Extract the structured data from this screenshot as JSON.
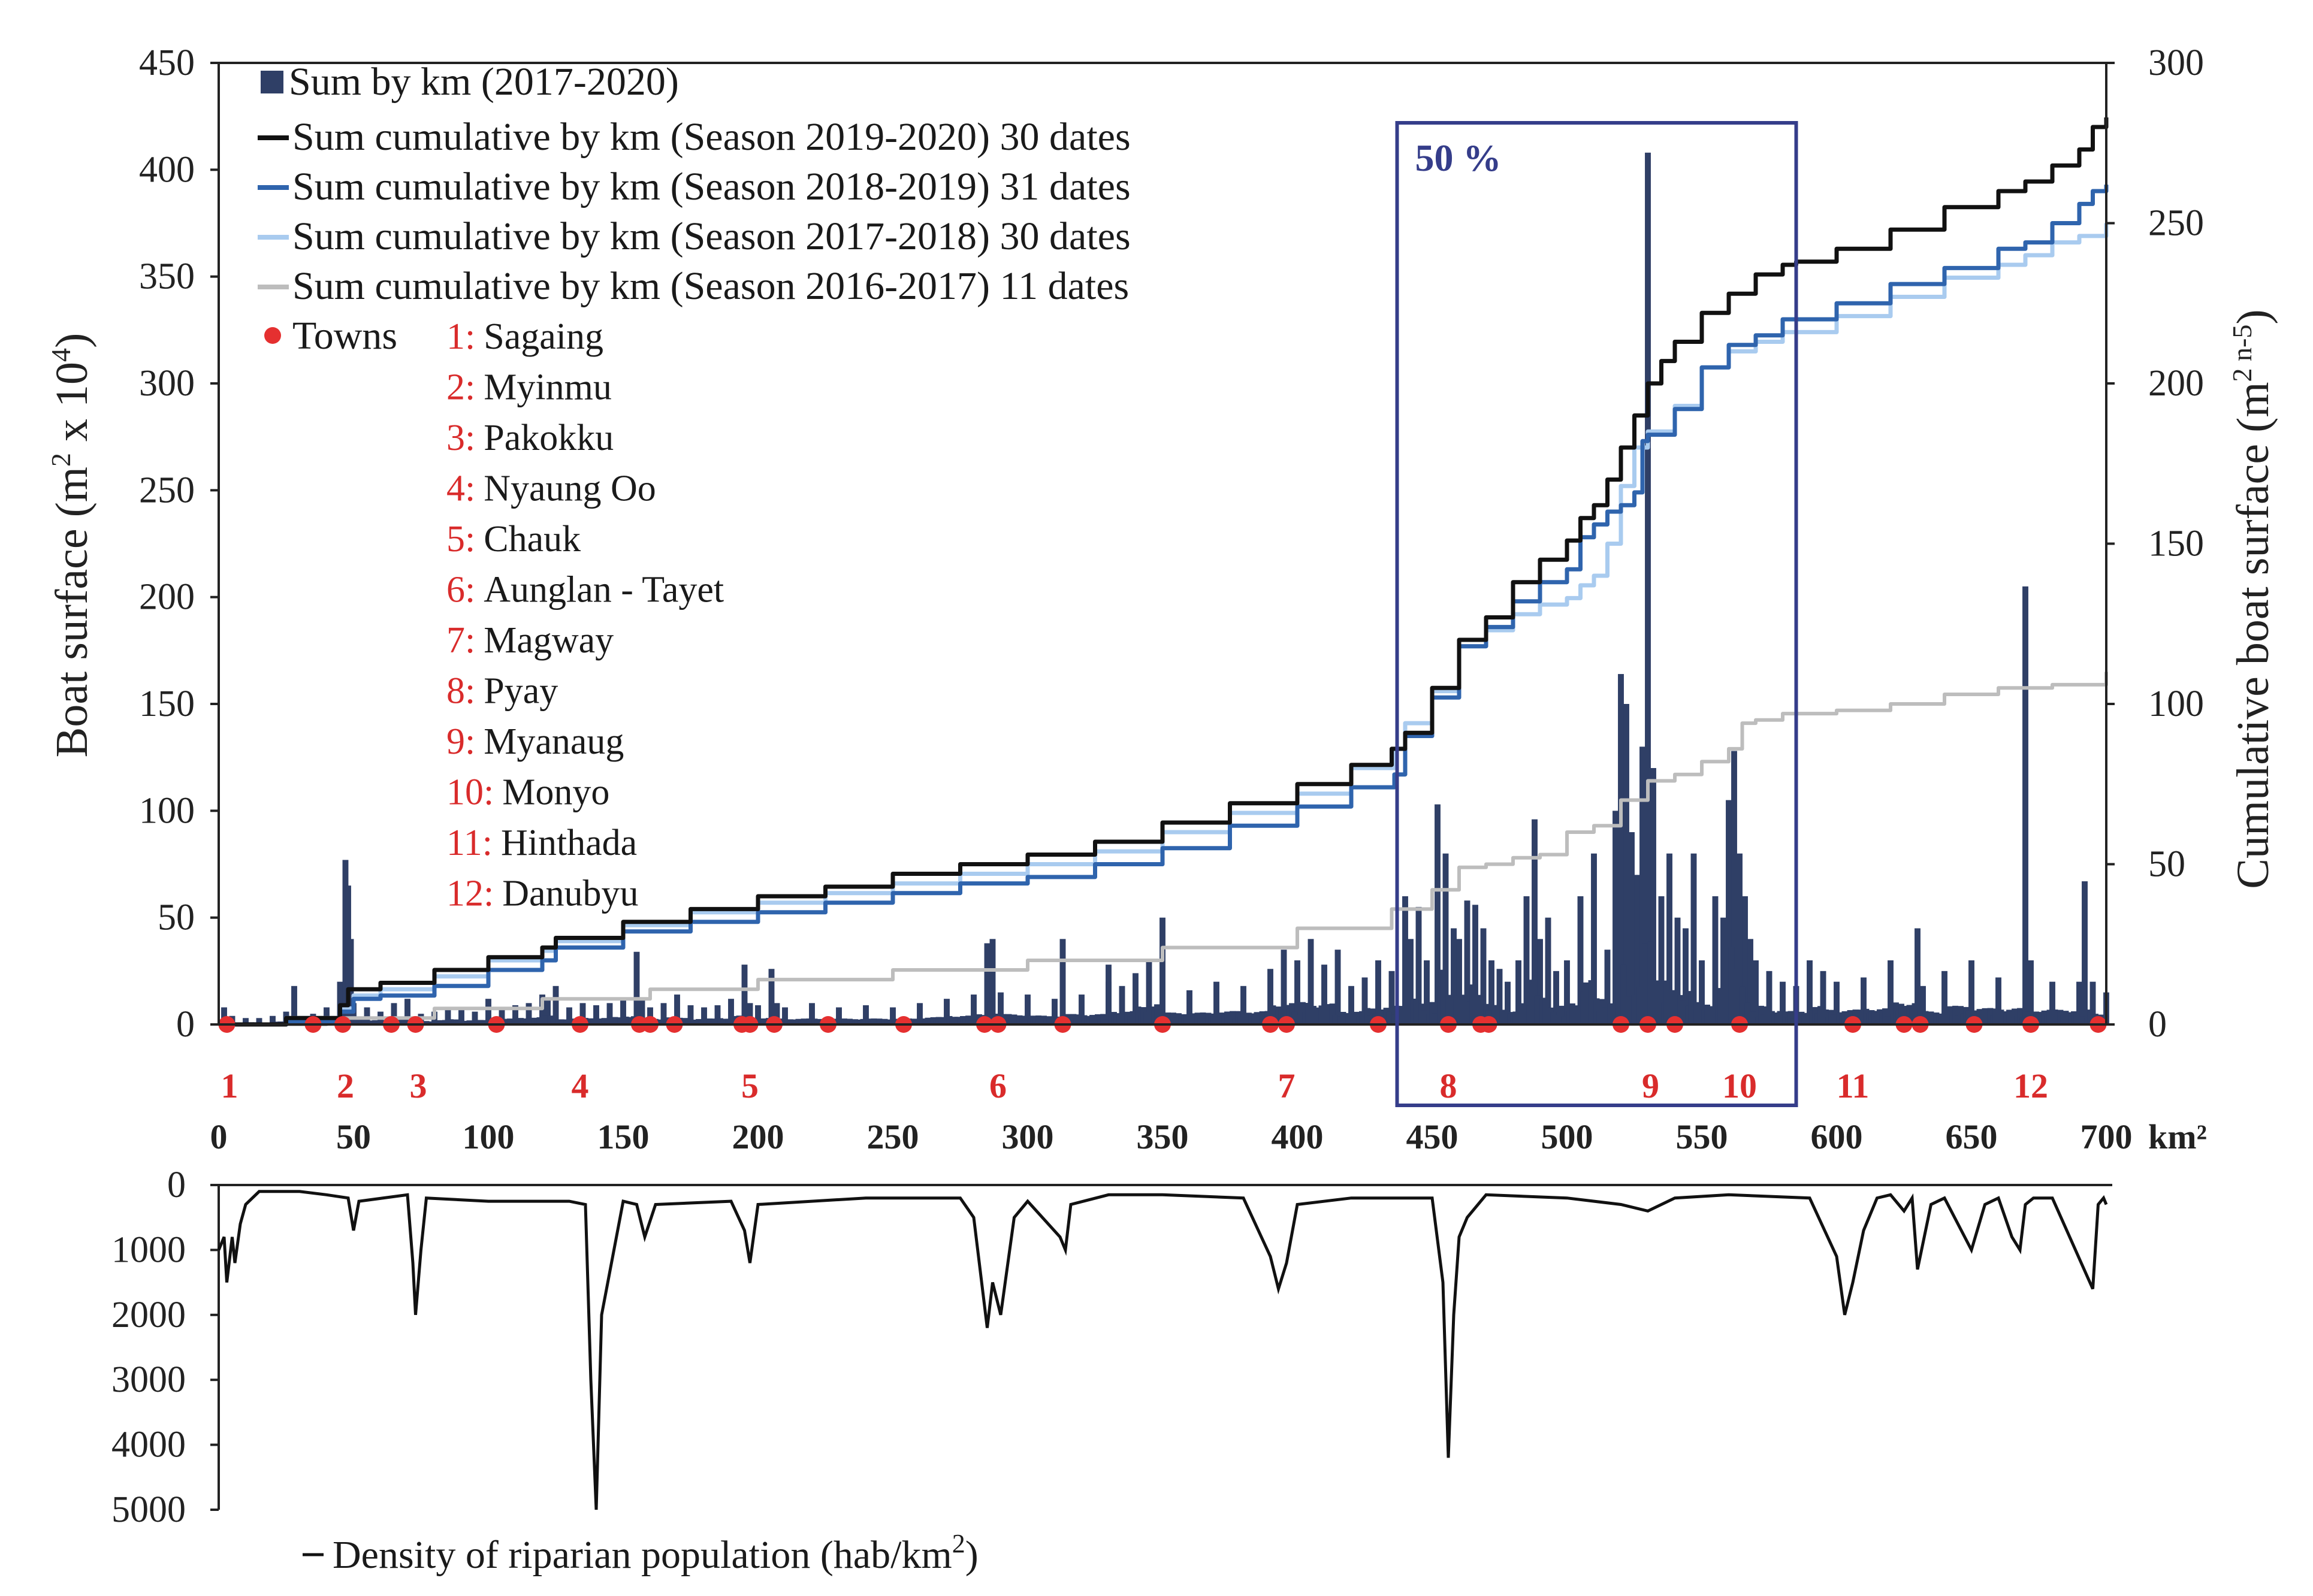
{
  "colors": {
    "bars": "#2f3f66",
    "s2019": "#111111",
    "s2018": "#2f64ad",
    "s2017": "#a9cbef",
    "s2016": "#bdbdbd",
    "towns": "#e53030",
    "highlight_box": "#353d8a",
    "density": "#111111"
  },
  "highlight": {
    "x_start": 437,
    "x_end": 585,
    "label": "50 %"
  },
  "chart_data": [
    {
      "type": "line",
      "title": "",
      "xlabel": "km²",
      "ylabel": "Boat surface (m² x 10⁴)",
      "ylabel_parts": [
        "Boat surface (m",
        "2",
        " x 10",
        "4",
        ")"
      ],
      "y2label": "Cumulative boat surface (m² n-5)",
      "y2label_parts": [
        "Cumulative boat surface (m",
        "2 n-5",
        ")"
      ],
      "xlim": [
        0,
        700
      ],
      "ylim": [
        0,
        450
      ],
      "y2lim": [
        0,
        300
      ],
      "x_ticks": [
        "0",
        "50",
        "100",
        "150",
        "200",
        "250",
        "300",
        "350",
        "400",
        "450",
        "500",
        "550",
        "600",
        "650",
        "700"
      ],
      "y_ticks": [
        "0",
        "50",
        "100",
        "150",
        "200",
        "250",
        "300",
        "350",
        "400",
        "450"
      ],
      "y2_ticks": [
        "0",
        "50",
        "100",
        "150",
        "200",
        "250",
        "300"
      ],
      "grid": false,
      "legend": "top-left",
      "bar_series": {
        "name": "Sum by km (2017-2020)",
        "x": [
          2,
          5,
          10,
          15,
          20,
          25,
          28,
          35,
          40,
          45,
          47,
          48,
          49,
          50,
          55,
          60,
          65,
          70,
          75,
          80,
          85,
          90,
          95,
          100,
          105,
          110,
          115,
          120,
          122,
          125,
          130,
          135,
          140,
          145,
          150,
          155,
          157,
          160,
          165,
          170,
          175,
          180,
          185,
          190,
          195,
          197,
          200,
          205,
          207,
          210,
          220,
          230,
          240,
          250,
          260,
          270,
          280,
          285,
          287,
          290,
          300,
          310,
          313,
          320,
          330,
          330,
          335,
          340,
          345,
          350,
          360,
          370,
          380,
          390,
          395,
          400,
          405,
          410,
          415,
          420,
          425,
          430,
          435,
          440,
          442,
          445,
          448,
          452,
          455,
          458,
          460,
          463,
          466,
          469,
          472,
          475,
          478,
          482,
          485,
          488,
          490,
          493,
          496,
          500,
          505,
          510,
          515,
          518,
          520,
          522,
          524,
          526,
          528,
          530,
          532,
          535,
          538,
          541,
          544,
          547,
          550,
          555,
          558,
          560,
          562,
          564,
          566,
          568,
          570,
          575,
          580,
          585,
          590,
          595,
          600,
          610,
          620,
          630,
          632,
          640,
          650,
          660,
          670,
          672,
          680,
          690,
          692,
          695,
          700
        ],
        "values": [
          8,
          4,
          3,
          3,
          4,
          6,
          18,
          5,
          8,
          20,
          77,
          65,
          40,
          10,
          8,
          6,
          10,
          12,
          5,
          6,
          8,
          7,
          6,
          12,
          8,
          9,
          10,
          14,
          12,
          18,
          8,
          10,
          9,
          10,
          12,
          34,
          12,
          8,
          10,
          14,
          9,
          8,
          9,
          12,
          28,
          10,
          9,
          26,
          10,
          8,
          10,
          8,
          9,
          8,
          10,
          12,
          14,
          38,
          40,
          15,
          14,
          12,
          40,
          14,
          20,
          28,
          18,
          24,
          30,
          50,
          16,
          20,
          18,
          26,
          35,
          30,
          40,
          28,
          35,
          18,
          22,
          30,
          25,
          60,
          40,
          55,
          30,
          103,
          80,
          45,
          40,
          58,
          56,
          45,
          30,
          26,
          20,
          30,
          60,
          96,
          40,
          50,
          25,
          30,
          60,
          80,
          35,
          100,
          164,
          150,
          90,
          70,
          130,
          408,
          120,
          60,
          80,
          50,
          45,
          80,
          30,
          60,
          50,
          105,
          128,
          80,
          60,
          40,
          30,
          25,
          20,
          18,
          30,
          25,
          20,
          22,
          30,
          45,
          18,
          25,
          30,
          22,
          205,
          30,
          20,
          20,
          67,
          20,
          15
        ]
      },
      "series": [
        {
          "name": "Sum cumulative by km (Season 2019-2020) 30 dates",
          "axis": "right",
          "x": [
            0,
            25,
            45,
            48,
            60,
            80,
            100,
            120,
            125,
            150,
            175,
            200,
            225,
            250,
            275,
            300,
            325,
            350,
            375,
            400,
            420,
            435,
            440,
            450,
            460,
            470,
            480,
            490,
            500,
            505,
            510,
            515,
            520,
            525,
            530,
            535,
            540,
            550,
            560,
            570,
            580,
            585,
            600,
            620,
            640,
            660,
            670,
            680,
            690,
            695,
            700
          ],
          "values": [
            0,
            2,
            6,
            11,
            13,
            17,
            21,
            24,
            27,
            32,
            36,
            40,
            43,
            47,
            50,
            53,
            57,
            63,
            69,
            75,
            81,
            86,
            91,
            105,
            120,
            127,
            138,
            145,
            151,
            158,
            162,
            170,
            180,
            190,
            200,
            207,
            213,
            222,
            228,
            234,
            237,
            238,
            242,
            248,
            255,
            260,
            263,
            268,
            273,
            280,
            283
          ]
        },
        {
          "name": "Sum cumulative by km (Season 2018-2019) 31 dates",
          "axis": "right",
          "x": [
            0,
            25,
            45,
            50,
            60,
            80,
            100,
            120,
            125,
            150,
            175,
            200,
            225,
            250,
            275,
            300,
            325,
            350,
            375,
            400,
            420,
            436,
            440,
            450,
            460,
            470,
            480,
            490,
            500,
            505,
            510,
            515,
            520,
            525,
            528,
            530,
            540,
            550,
            560,
            570,
            580,
            600,
            620,
            640,
            660,
            670,
            680,
            690,
            695,
            700
          ],
          "values": [
            0,
            1,
            4,
            8,
            9,
            12,
            17,
            20,
            24,
            29,
            32,
            35,
            38,
            41,
            44,
            46,
            50,
            55,
            62,
            68,
            74,
            78,
            90,
            102,
            118,
            124,
            132,
            138,
            142,
            152,
            156,
            160,
            162,
            166,
            182,
            184,
            192,
            205,
            212,
            215,
            220,
            225,
            231,
            236,
            242,
            244,
            250,
            256,
            260,
            262
          ]
        },
        {
          "name": "Sum cumulative by km (Season 2017-2018) 30 dates",
          "axis": "right",
          "x": [
            0,
            25,
            45,
            50,
            60,
            80,
            100,
            120,
            125,
            150,
            175,
            200,
            225,
            250,
            275,
            300,
            325,
            350,
            375,
            400,
            420,
            436,
            440,
            450,
            460,
            470,
            480,
            490,
            500,
            505,
            510,
            515,
            520,
            525,
            530,
            540,
            550,
            560,
            570,
            580,
            600,
            620,
            640,
            660,
            670,
            680,
            690,
            700
          ],
          "values": [
            0,
            2,
            5,
            9,
            11,
            15,
            20,
            23,
            26,
            31,
            35,
            38,
            41,
            44,
            47,
            50,
            54,
            60,
            66,
            72,
            80,
            86,
            94,
            104,
            118,
            123,
            128,
            131,
            133,
            137,
            140,
            150,
            168,
            180,
            185,
            193,
            205,
            210,
            213,
            216,
            221,
            227,
            233,
            237,
            240,
            244,
            246,
            250
          ]
        },
        {
          "name": "Sum cumulative by km (Season 2016-2017) 11 dates",
          "axis": "right",
          "x": [
            0,
            40,
            80,
            120,
            160,
            200,
            250,
            300,
            350,
            400,
            435,
            450,
            460,
            470,
            480,
            490,
            500,
            510,
            520,
            530,
            540,
            550,
            560,
            565,
            570,
            580,
            600,
            620,
            640,
            660,
            680,
            700
          ],
          "values": [
            0,
            2,
            5,
            8,
            11,
            14,
            17,
            20,
            24,
            30,
            36,
            42,
            49,
            50,
            52,
            53,
            60,
            62,
            70,
            76,
            78,
            82,
            86,
            94,
            95,
            97,
            98,
            100,
            103,
            105,
            106,
            110
          ]
        }
      ],
      "towns_legend": "Towns",
      "towns": [
        {
          "num": "1",
          "name": "Sagaing"
        },
        {
          "num": "2",
          "name": "Myinmu"
        },
        {
          "num": "3",
          "name": "Pakokku"
        },
        {
          "num": "4",
          "name": "Nyaung Oo"
        },
        {
          "num": "5",
          "name": "Chauk"
        },
        {
          "num": "6",
          "name": "Aunglan - Tayet"
        },
        {
          "num": "7",
          "name": "Magway"
        },
        {
          "num": "8",
          "name": "Pyay"
        },
        {
          "num": "9",
          "name": "Myanaug"
        },
        {
          "num": "10",
          "name": "Monyo"
        },
        {
          "num": "11",
          "name": "Hinthada"
        },
        {
          "num": "12",
          "name": "Danubyu"
        }
      ],
      "town_points_x": [
        3,
        35,
        46,
        64,
        73,
        103,
        134,
        156,
        160,
        169,
        194,
        197,
        206,
        226,
        254,
        284,
        289,
        313,
        350,
        390,
        396,
        430,
        456,
        468,
        471,
        520,
        530,
        540,
        564,
        606,
        625,
        631,
        651,
        672,
        697
      ],
      "segment_labels": [
        {
          "label": "1",
          "x": 4
        },
        {
          "label": "2",
          "x": 47
        },
        {
          "label": "3",
          "x": 74
        },
        {
          "label": "4",
          "x": 134
        },
        {
          "label": "5",
          "x": 197
        },
        {
          "label": "6",
          "x": 289
        },
        {
          "label": "7",
          "x": 396
        },
        {
          "label": "8",
          "x": 456
        },
        {
          "label": "9",
          "x": 531
        },
        {
          "label": "10",
          "x": 564
        },
        {
          "label": "11",
          "x": 606
        },
        {
          "label": "12",
          "x": 672
        }
      ]
    },
    {
      "type": "line",
      "title": "",
      "legend_label": "Density of riparian population (hab/km²)",
      "legend_label_parts": [
        "Density of riparian population (hab/km",
        "2",
        ")"
      ],
      "xlim": [
        0,
        700
      ],
      "ylim": [
        0,
        5000
      ],
      "y_inverted": true,
      "y_ticks": [
        "0",
        "1000",
        "2000",
        "3000",
        "4000",
        "5000"
      ],
      "series": [
        {
          "name": "Density of riparian population (hab/km²)",
          "x": [
            0,
            2,
            3,
            5,
            6,
            8,
            10,
            15,
            30,
            40,
            48,
            50,
            52,
            70,
            72,
            73,
            75,
            77,
            100,
            130,
            136,
            138,
            140,
            142,
            150,
            155,
            158,
            162,
            190,
            195,
            197,
            200,
            240,
            275,
            280,
            285,
            287,
            290,
            295,
            300,
            312,
            314,
            316,
            330,
            350,
            380,
            390,
            393,
            396,
            400,
            420,
            450,
            454,
            456,
            458,
            460,
            463,
            470,
            500,
            520,
            530,
            540,
            560,
            590,
            600,
            603,
            606,
            610,
            615,
            620,
            625,
            628,
            630,
            635,
            640,
            650,
            655,
            660,
            665,
            668,
            670,
            673,
            680,
            695,
            697,
            699,
            700
          ],
          "values": [
            1000,
            800,
            1500,
            800,
            1200,
            600,
            300,
            100,
            100,
            150,
            200,
            700,
            250,
            150,
            1200,
            2000,
            1000,
            200,
            250,
            250,
            300,
            3000,
            5000,
            2000,
            250,
            300,
            800,
            300,
            250,
            700,
            1200,
            300,
            200,
            200,
            500,
            2200,
            1500,
            2000,
            500,
            250,
            800,
            1000,
            300,
            150,
            150,
            200,
            1100,
            1600,
            1200,
            300,
            200,
            200,
            1500,
            4200,
            2000,
            800,
            500,
            150,
            200,
            300,
            400,
            200,
            150,
            200,
            1100,
            2000,
            1500,
            700,
            200,
            150,
            400,
            200,
            1300,
            300,
            200,
            1000,
            300,
            200,
            800,
            1000,
            300,
            200,
            200,
            1600,
            300,
            200,
            300
          ]
        }
      ]
    }
  ]
}
